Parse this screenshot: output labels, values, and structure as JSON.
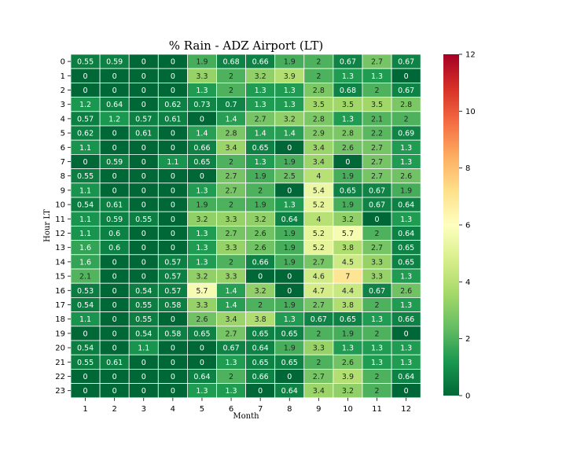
{
  "chart_data": {
    "type": "heatmap",
    "title": "% Rain - ADZ Airport (LT)",
    "xlabel": "Month",
    "ylabel": "Hour LT",
    "x_categories": [
      "1",
      "2",
      "3",
      "4",
      "5",
      "6",
      "7",
      "8",
      "9",
      "10",
      "11",
      "12"
    ],
    "y_categories": [
      "0",
      "1",
      "2",
      "3",
      "4",
      "5",
      "6",
      "7",
      "8",
      "9",
      "10",
      "11",
      "12",
      "13",
      "14",
      "15",
      "16",
      "17",
      "18",
      "19",
      "20",
      "21",
      "22",
      "23"
    ],
    "values": [
      [
        0.55,
        0.59,
        0,
        0,
        1.9,
        0.68,
        0.66,
        1.9,
        2,
        0.67,
        2.7,
        0.67
      ],
      [
        0,
        0,
        0,
        0,
        3.3,
        2,
        3.2,
        3.9,
        2,
        1.3,
        1.3,
        0
      ],
      [
        0,
        0,
        0,
        0,
        1.3,
        2,
        1.3,
        1.3,
        2.8,
        0.68,
        2,
        0.67
      ],
      [
        1.2,
        0.64,
        0,
        0.62,
        0.73,
        0.7,
        1.3,
        1.3,
        3.5,
        3.5,
        3.5,
        2.8
      ],
      [
        0.57,
        1.2,
        0.57,
        0.61,
        0,
        1.4,
        2.7,
        3.2,
        2.8,
        1.3,
        2.1,
        2
      ],
      [
        0.62,
        0,
        0.61,
        0,
        1.4,
        2.8,
        1.4,
        1.4,
        2.9,
        2.8,
        2.2,
        0.69
      ],
      [
        1.1,
        0,
        0,
        0,
        0.66,
        3.4,
        0.65,
        0,
        3.4,
        2.6,
        2.7,
        1.3
      ],
      [
        0,
        0.59,
        0,
        1.1,
        0.65,
        2,
        1.3,
        1.9,
        3.4,
        0,
        2.7,
        1.3
      ],
      [
        0.55,
        0,
        0,
        0,
        0,
        2.7,
        1.9,
        2.5,
        4,
        1.9,
        2.7,
        2.6
      ],
      [
        1.1,
        0,
        0,
        0,
        1.3,
        2.7,
        2,
        0,
        5.4,
        0.65,
        0.67,
        1.9
      ],
      [
        0.54,
        0.61,
        0,
        0,
        1.9,
        2,
        1.9,
        1.3,
        5.2,
        1.9,
        0.67,
        0.64
      ],
      [
        1.1,
        0.59,
        0.55,
        0,
        3.2,
        3.3,
        3.2,
        0.64,
        4,
        3.2,
        0,
        1.3
      ],
      [
        1.1,
        0.6,
        0,
        0,
        1.3,
        2.7,
        2.6,
        1.9,
        5.2,
        5.7,
        2,
        0.64
      ],
      [
        1.6,
        0.6,
        0,
        0,
        1.3,
        3.3,
        2.6,
        1.9,
        5.2,
        3.8,
        2.7,
        0.65
      ],
      [
        1.6,
        0,
        0,
        0.57,
        1.3,
        2,
        0.66,
        1.9,
        2.7,
        4.5,
        3.3,
        0.65
      ],
      [
        2.1,
        0,
        0,
        0.57,
        3.2,
        3.3,
        0,
        0,
        4.6,
        7,
        3.3,
        1.3
      ],
      [
        0.53,
        0,
        0.54,
        0.57,
        5.7,
        1.4,
        3.2,
        0,
        4.7,
        4.4,
        0.67,
        2.6
      ],
      [
        0.54,
        0,
        0.55,
        0.58,
        3.3,
        1.4,
        2,
        1.9,
        2.7,
        3.8,
        2,
        1.3
      ],
      [
        1.1,
        0,
        0.55,
        0,
        2.6,
        3.4,
        3.8,
        1.3,
        0.67,
        0.65,
        1.3,
        0.66
      ],
      [
        0,
        0,
        0.54,
        0.58,
        0.65,
        2.7,
        0.65,
        0.65,
        2,
        1.9,
        2,
        0
      ],
      [
        0.54,
        0,
        1.1,
        0,
        0,
        0.67,
        0.64,
        1.9,
        3.3,
        1.3,
        1.3,
        1.3
      ],
      [
        0.55,
        0.61,
        0,
        0,
        0,
        1.3,
        0.65,
        0.65,
        2,
        2.6,
        1.3,
        1.3
      ],
      [
        0,
        0,
        0,
        0,
        0.64,
        2,
        0.66,
        0,
        2.7,
        3.9,
        2,
        0.64
      ],
      [
        0,
        0,
        0,
        0,
        1.3,
        1.3,
        0,
        0.64,
        3.4,
        3.2,
        2,
        0
      ]
    ],
    "colorscale": "RdYlGn_r",
    "vmin": 0,
    "vmax": 12,
    "colorbar_ticks": [
      "0",
      "2",
      "4",
      "6",
      "8",
      "10",
      "12"
    ],
    "colorbar_tick_values": [
      0,
      2,
      4,
      6,
      8,
      10,
      12
    ],
    "legend": "colorbar right"
  }
}
